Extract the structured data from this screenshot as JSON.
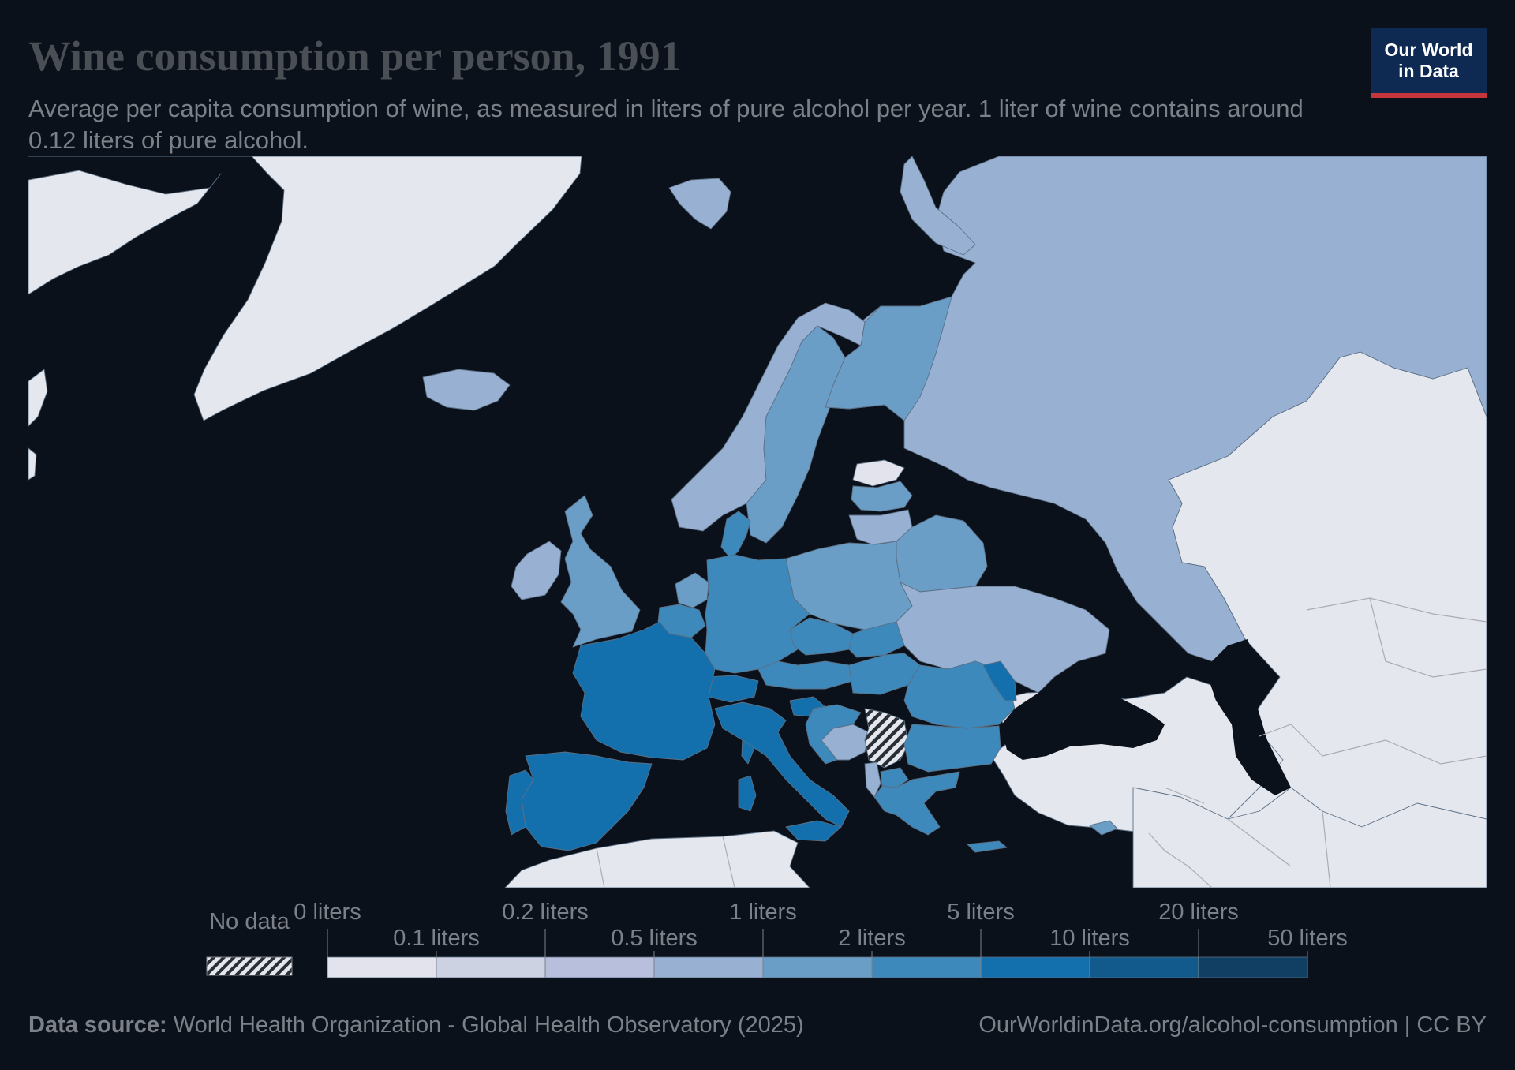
{
  "title": "Wine consumption per person, 1991",
  "subtitle": "Average per capita consumption of wine, as measured in liters of pure alcohol per year. 1 liter of wine contains around 0.12 liters of pure alcohol.",
  "logo": {
    "line1": "Our World",
    "line2": "in Data"
  },
  "colors": {
    "background": "#0b111a",
    "no_data_fill": "#e4e7ee",
    "scale": [
      "#e2e3ec",
      "#cdd2e2",
      "#b7bfdc",
      "#98b1d2",
      "#6a9ec7",
      "#3d89bb",
      "#1470ad",
      "#125a8c",
      "#113f64"
    ],
    "logo_bg": "#0e2a52",
    "logo_accent": "#c4363b"
  },
  "legend": {
    "no_data_label": "No data",
    "upper_labels": [
      "0 liters",
      "0.2 liters",
      "1 liters",
      "5 liters",
      "20 liters"
    ],
    "lower_labels": [
      "0.1 liters",
      "0.5 liters",
      "2 liters",
      "10 liters",
      "50 liters"
    ]
  },
  "map_data": {
    "region": "Europe",
    "unit": "liters of pure alcohol per year",
    "bins": [
      "0-0.1",
      "0.1-0.2",
      "0.2-0.5",
      "0.5-1",
      "1-2",
      "2-5",
      "5-10",
      "10-20",
      "20-50"
    ],
    "countries": [
      {
        "name": "Iceland",
        "bin": "0.5-1"
      },
      {
        "name": "Ireland",
        "bin": "0.5-1"
      },
      {
        "name": "United Kingdom",
        "bin": "1-2"
      },
      {
        "name": "Norway",
        "bin": "0.5-1"
      },
      {
        "name": "Sweden",
        "bin": "1-2"
      },
      {
        "name": "Finland",
        "bin": "1-2"
      },
      {
        "name": "Russia",
        "bin": "0.5-1"
      },
      {
        "name": "Estonia",
        "bin": "0-0.1"
      },
      {
        "name": "Latvia",
        "bin": "1-2"
      },
      {
        "name": "Lithuania",
        "bin": "0.5-1"
      },
      {
        "name": "Belarus",
        "bin": "1-2"
      },
      {
        "name": "Poland",
        "bin": "1-2"
      },
      {
        "name": "Ukraine",
        "bin": "0.5-1"
      },
      {
        "name": "Denmark",
        "bin": "2-5"
      },
      {
        "name": "Netherlands",
        "bin": "1-2"
      },
      {
        "name": "Belgium",
        "bin": "2-5"
      },
      {
        "name": "Luxembourg",
        "bin": "2-5"
      },
      {
        "name": "Germany",
        "bin": "2-5"
      },
      {
        "name": "Czechia",
        "bin": "2-5"
      },
      {
        "name": "Slovakia",
        "bin": "2-5"
      },
      {
        "name": "Austria",
        "bin": "2-5"
      },
      {
        "name": "Hungary",
        "bin": "2-5"
      },
      {
        "name": "Switzerland",
        "bin": "5-10"
      },
      {
        "name": "France",
        "bin": "5-10"
      },
      {
        "name": "Spain",
        "bin": "5-10"
      },
      {
        "name": "Portugal",
        "bin": "5-10"
      },
      {
        "name": "Italy",
        "bin": "5-10"
      },
      {
        "name": "Slovenia",
        "bin": "5-10"
      },
      {
        "name": "Croatia",
        "bin": "2-5"
      },
      {
        "name": "Bosnia and Herzegovina",
        "bin": "0.5-1"
      },
      {
        "name": "Serbia",
        "bin": "no data"
      },
      {
        "name": "Romania",
        "bin": "2-5"
      },
      {
        "name": "Moldova",
        "bin": "5-10"
      },
      {
        "name": "Bulgaria",
        "bin": "2-5"
      },
      {
        "name": "North Macedonia",
        "bin": "2-5"
      },
      {
        "name": "Albania",
        "bin": "0.5-1"
      },
      {
        "name": "Greece",
        "bin": "2-5"
      },
      {
        "name": "Cyprus",
        "bin": "1-2"
      },
      {
        "name": "Greenland",
        "bin": "no data"
      },
      {
        "name": "Turkey",
        "bin": "no data"
      },
      {
        "name": "Kazakhstan",
        "bin": "no data"
      },
      {
        "name": "North Africa",
        "bin": "no data"
      },
      {
        "name": "Middle East",
        "bin": "no data"
      }
    ]
  },
  "footer": {
    "source_label": "Data source:",
    "source_text": " World Health Organization - Global Health Observatory (2025)",
    "url_text": "OurWorldinData.org/alcohol-consumption | CC BY"
  }
}
